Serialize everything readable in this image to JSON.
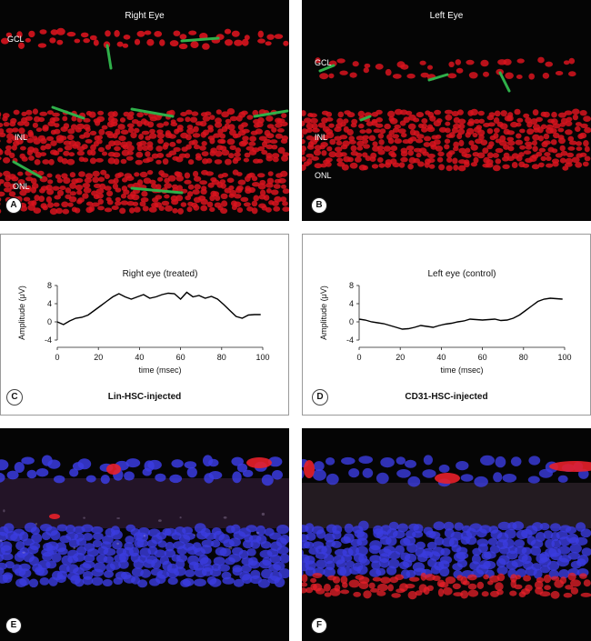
{
  "panels": {
    "a": {
      "title": "Right Eye",
      "badge": "A",
      "labels": {
        "gcl": "GCL",
        "inl": "INL",
        "onl": "ONL"
      }
    },
    "b": {
      "title": "Left Eye",
      "badge": "B",
      "labels": {
        "gcl": "GCL",
        "inl": "INL",
        "onl": "ONL"
      }
    },
    "c": {
      "badge": "C",
      "caption": "Lin-HSC-injected"
    },
    "d": {
      "badge": "D",
      "caption": "CD31-HSC-injected"
    },
    "e": {
      "badge": "E"
    },
    "f": {
      "badge": "F"
    }
  },
  "chart_data": [
    {
      "type": "line",
      "title": "Right eye (treated)",
      "xlabel": "time (msec)",
      "ylabel": "Amplitude (μV)",
      "xlim": [
        0,
        100
      ],
      "ylim": [
        -4,
        8
      ],
      "xticks": [
        "0",
        "20",
        "40",
        "60",
        "80",
        "100"
      ],
      "yticks": [
        "8",
        "4",
        "0",
        "-4"
      ],
      "series": [
        {
          "x": [
            0,
            3,
            6,
            9,
            12,
            15,
            18,
            21,
            24,
            27,
            30,
            33,
            36,
            39,
            42,
            45,
            48,
            51,
            54,
            57,
            60,
            63,
            66,
            69,
            72,
            75,
            78,
            81,
            84,
            87,
            90,
            93,
            96,
            99
          ],
          "y": [
            0,
            -0.6,
            0.2,
            0.8,
            1.0,
            1.5,
            2.5,
            3.5,
            4.5,
            5.5,
            6.2,
            5.5,
            5.0,
            5.5,
            6.0,
            5.2,
            5.5,
            6.0,
            6.3,
            6.2,
            5.0,
            6.5,
            5.5,
            5.8,
            5.2,
            5.6,
            5.0,
            3.8,
            2.5,
            1.2,
            0.8,
            1.5,
            1.6,
            1.6
          ]
        }
      ]
    },
    {
      "type": "line",
      "title": "Left eye (control)",
      "xlabel": "time (msec)",
      "ylabel": "Amplitude (μV)",
      "xlim": [
        0,
        100
      ],
      "ylim": [
        -4,
        8
      ],
      "xticks": [
        "0",
        "20",
        "40",
        "60",
        "80",
        "100"
      ],
      "yticks": [
        "8",
        "4",
        "0",
        "-4"
      ],
      "series": [
        {
          "x": [
            0,
            3,
            6,
            9,
            12,
            15,
            18,
            21,
            24,
            27,
            30,
            33,
            36,
            39,
            42,
            45,
            48,
            51,
            54,
            57,
            60,
            63,
            66,
            69,
            72,
            75,
            78,
            81,
            84,
            87,
            90,
            93,
            96,
            99
          ],
          "y": [
            0.6,
            0.4,
            0.0,
            -0.2,
            -0.4,
            -0.8,
            -1.2,
            -1.6,
            -1.5,
            -1.2,
            -0.8,
            -1.0,
            -1.2,
            -0.8,
            -0.5,
            -0.3,
            0.0,
            0.2,
            0.6,
            0.5,
            0.4,
            0.5,
            0.6,
            0.3,
            0.4,
            0.8,
            1.5,
            2.5,
            3.5,
            4.5,
            5.0,
            5.2,
            5.1,
            5.0
          ]
        }
      ]
    }
  ],
  "colors": {
    "nuclei_red": "#d8141e",
    "vessel_green": "#2fb04a",
    "nuclei_blue": "#3b3ce0",
    "marker_red": "#e8202a",
    "line": "#000000"
  }
}
